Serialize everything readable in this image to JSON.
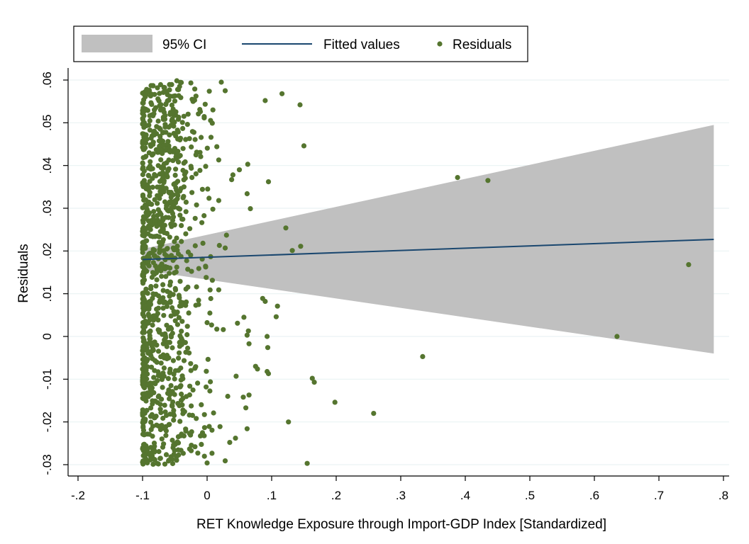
{
  "chart_data": {
    "type": "scatter",
    "xlabel": "RET Knowledge Exposure through Import-GDP Index [Standardized]",
    "ylabel": "Residuals",
    "xlim": [
      -0.2,
      0.8
    ],
    "ylim": [
      -0.03,
      0.06
    ],
    "x_ticks": [
      -0.2,
      -0.1,
      0,
      0.1,
      0.2,
      0.3,
      0.4,
      0.5,
      0.6,
      0.7,
      0.8
    ],
    "x_tick_labels": [
      "-.2",
      "-.1",
      "0",
      ".1",
      ".2",
      ".3",
      ".4",
      ".5",
      ".6",
      ".7",
      ".8"
    ],
    "y_ticks": [
      -0.03,
      -0.02,
      -0.01,
      0,
      0.01,
      0.02,
      0.03,
      0.04,
      0.05,
      0.06
    ],
    "y_tick_labels": [
      "-.03",
      "-.02",
      "-.01",
      "0",
      ".01",
      ".02",
      ".03",
      ".04",
      ".05",
      ".06"
    ],
    "grid": "horizontal",
    "legend": {
      "position": "top",
      "entries": [
        "95% CI",
        "Fitted values",
        "Residuals"
      ]
    },
    "colors": {
      "ci": "#c0c0c0",
      "fitted": "#1a476f",
      "residuals": "#55752f",
      "grid": "#eaf2f3"
    },
    "series": [
      {
        "name": "95% CI",
        "type": "area",
        "x": [
          -0.1,
          0.785
        ],
        "lower": [
          0.0155,
          -0.004
        ],
        "upper": [
          0.0205,
          0.0495
        ]
      },
      {
        "name": "Fitted values",
        "type": "line",
        "x": [
          -0.1,
          0.785
        ],
        "y": [
          0.018,
          0.0227
        ]
      },
      {
        "name": "Residuals",
        "type": "scatter",
        "note_dense_cluster": "approximately 1000 points between x=-0.1 and x=-0.04 spanning the full y range",
        "cluster_x_range": [
          -0.1,
          -0.04
        ],
        "cluster_y_range": [
          -0.03,
          0.06
        ],
        "points": [
          [
            0.022,
            0.0595
          ],
          [
            0.028,
            0.0575
          ],
          [
            0.09,
            0.0552
          ],
          [
            0.116,
            0.0568
          ],
          [
            0.144,
            0.0542
          ],
          [
            0.15,
            0.0446
          ],
          [
            0.063,
            0.0403
          ],
          [
            0.05,
            0.039
          ],
          [
            0.04,
            0.0378
          ],
          [
            0.095,
            0.0362
          ],
          [
            0.038,
            0.0367
          ],
          [
            0.062,
            0.0334
          ],
          [
            0.067,
            0.0299
          ],
          [
            0.122,
            0.0254
          ],
          [
            0.03,
            0.0237
          ],
          [
            0.145,
            0.0211
          ],
          [
            0.132,
            0.0201
          ],
          [
            0.028,
            0.0207
          ],
          [
            0.019,
            0.0213
          ],
          [
            0.018,
            0.0318
          ],
          [
            0.015,
            0.0444
          ],
          [
            0.018,
            0.0413
          ],
          [
            0.006,
            0.0466
          ],
          [
            0.388,
            0.0372
          ],
          [
            0.435,
            0.0365
          ],
          [
            0.746,
            0.0168
          ],
          [
            0.635,
            0.0
          ],
          [
            0.334,
            -0.0047
          ],
          [
            0.258,
            -0.018
          ],
          [
            0.198,
            -0.0154
          ],
          [
            0.163,
            -0.0098
          ],
          [
            0.166,
            -0.0107
          ],
          [
            0.126,
            -0.02
          ],
          [
            0.155,
            -0.0297
          ],
          [
            0.109,
            0.0071
          ],
          [
            0.107,
            0.0046
          ],
          [
            0.086,
            0.0089
          ],
          [
            0.09,
            0.0082
          ],
          [
            0.064,
            0.0013
          ],
          [
            0.062,
            0.0003
          ],
          [
            0.093,
            0.0
          ],
          [
            0.094,
            -0.0026
          ],
          [
            0.065,
            -0.0017
          ],
          [
            0.075,
            -0.007
          ],
          [
            0.078,
            -0.0076
          ],
          [
            0.093,
            -0.0082
          ],
          [
            0.095,
            -0.0087
          ],
          [
            0.065,
            -0.0137
          ],
          [
            0.06,
            -0.0167
          ],
          [
            0.056,
            -0.0142
          ],
          [
            0.062,
            -0.0216
          ],
          [
            0.044,
            -0.0238
          ],
          [
            0.035,
            -0.0248
          ],
          [
            0.028,
            -0.0291
          ],
          [
            0.0,
            -0.0296
          ],
          [
            0.02,
            -0.0211
          ],
          [
            0.01,
            -0.0179
          ],
          [
            0.005,
            -0.0106
          ],
          [
            0.032,
            -0.014
          ],
          [
            0.045,
            -0.0093
          ],
          [
            0.015,
            0.0017
          ],
          [
            0.018,
            0.0109
          ],
          [
            0.025,
            0.0016
          ],
          [
            0.057,
            0.0045
          ],
          [
            0.047,
            0.0031
          ]
        ]
      }
    ]
  }
}
